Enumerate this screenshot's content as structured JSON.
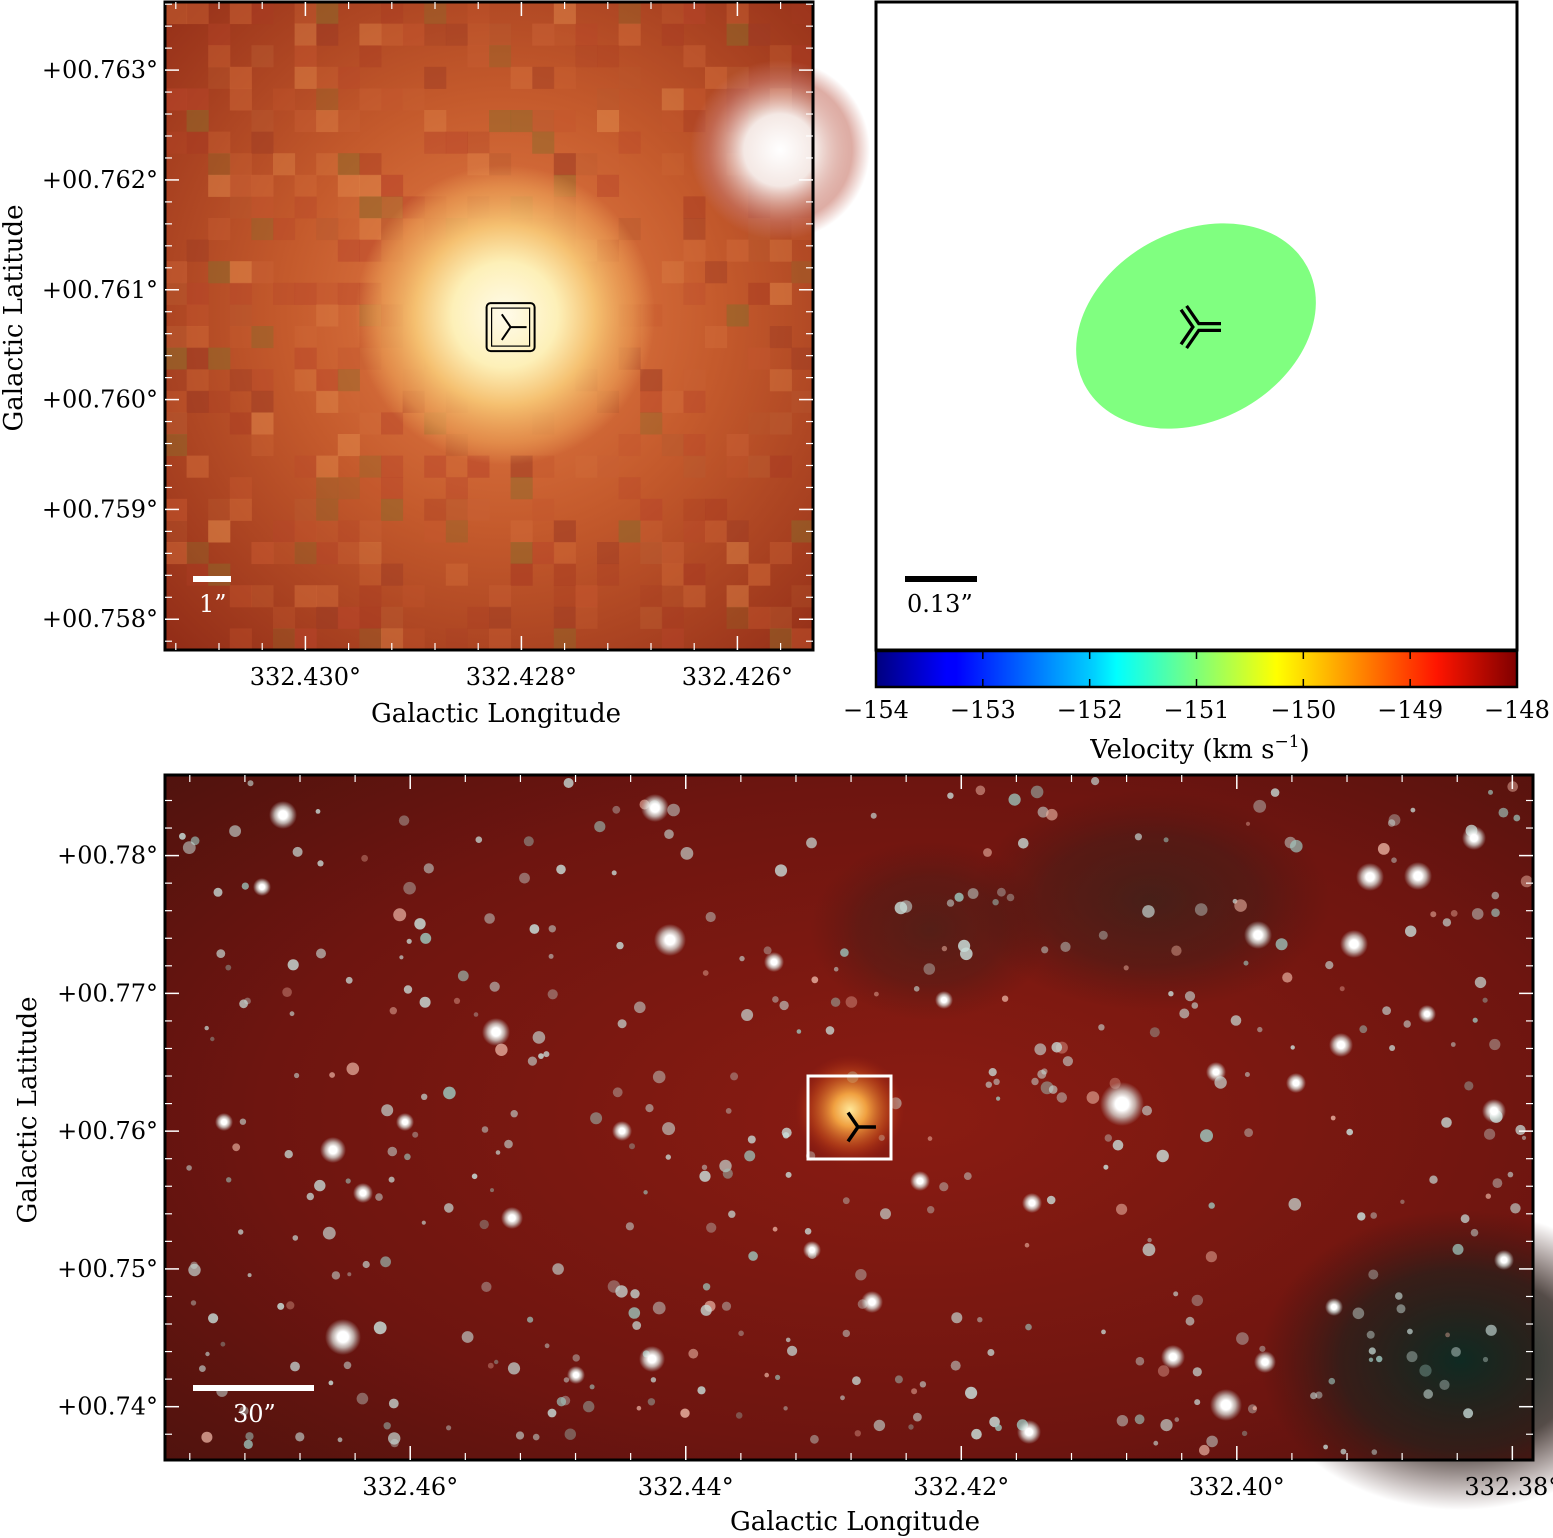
{
  "chart_data": [
    {
      "panel": "top-left",
      "type": "image",
      "image": "three-color infrared image, pixelated, bright yellow-white source at center on orange/red background, white source at upper right",
      "x_ticks": [
        332.43,
        332.428,
        332.426
      ],
      "x_tick_labels": [
        "332.430°",
        "332.428°",
        "332.426°"
      ],
      "y_ticks": [
        0.763,
        0.762,
        0.761,
        0.76,
        0.759,
        0.758
      ],
      "y_tick_labels": [
        "+00.763°",
        "+00.762°",
        "+00.761°",
        "+00.760°",
        "+00.759°",
        "+00.758°"
      ],
      "xlim": [
        332.4313,
        332.4253
      ],
      "ylim": [
        0.75772,
        0.76362
      ],
      "xlabel": "Galactic Longitude",
      "ylabel": "Galactic Latitude",
      "scalebar_label": "1”",
      "markers": [
        {
          "shape": "tri-right in square",
          "l": 332.4281,
          "b": 0.76066,
          "color": "#000000"
        }
      ]
    },
    {
      "panel": "top-right",
      "type": "image",
      "image": "velocity map, single green filled ellipse on white background",
      "scalebar_label": "0.13”",
      "markers": [
        {
          "shape": "tri-right",
          "color": "#000000"
        }
      ],
      "ellipse_color": "#80ff80",
      "colorbar": {
        "colormap": "jet",
        "range": [
          -154,
          -148
        ],
        "ticks": [
          -154,
          -153,
          -152,
          -151,
          -150,
          -149,
          -148
        ],
        "tick_labels": [
          "−154",
          "−153",
          "−152",
          "−151",
          "−150",
          "−149",
          "−148"
        ],
        "label": "Velocity (km s",
        "label_superscript": "−1",
        "label_close": ")"
      }
    },
    {
      "panel": "bottom",
      "type": "image",
      "image": "wide-field three-color infrared image of a dark red field with many white point sources; boxed yellow source near center",
      "x_ticks": [
        332.46,
        332.44,
        332.42,
        332.4,
        332.38
      ],
      "x_tick_labels": [
        "332.46°",
        "332.44°",
        "332.42°",
        "332.40°",
        "332.38°"
      ],
      "y_ticks": [
        0.78,
        0.77,
        0.76,
        0.75,
        0.74
      ],
      "y_tick_labels": [
        "+00.78°",
        "+00.77°",
        "+00.76°",
        "+00.75°",
        "+00.74°"
      ],
      "xlim": [
        332.4778,
        332.3785
      ],
      "ylim": [
        0.73613,
        0.78585
      ],
      "xlabel": "Galactic Longitude",
      "ylabel": "Galactic Latitude",
      "scalebar_label": "30”",
      "markers": [
        {
          "shape": "tri-right",
          "l": 332.4275,
          "b": 0.7603,
          "color": "#000000"
        }
      ],
      "zoom_box": {
        "l_range": [
          332.4313,
          332.4253
        ],
        "b_range": [
          0.75772,
          0.76362
        ],
        "color": "#ffffff"
      }
    }
  ]
}
